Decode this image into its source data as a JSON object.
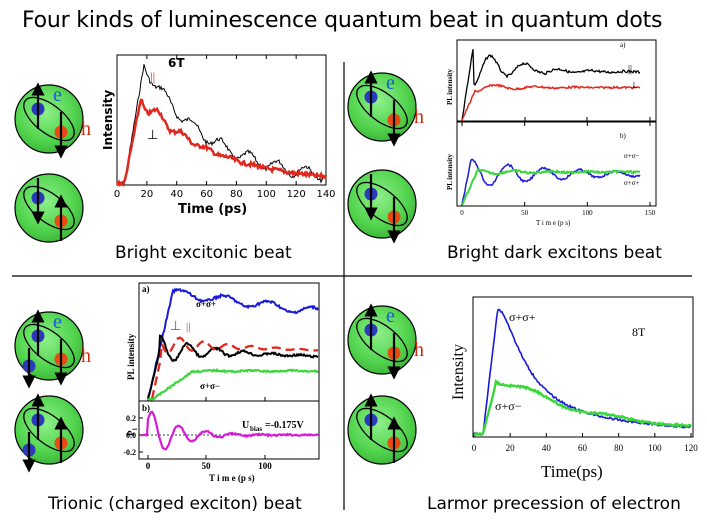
{
  "title": "Four kinds of luminescence quantum beat in quantum dots",
  "spin_symbols": {
    "e": "e",
    "h": "h"
  },
  "colors": {
    "black": "#000000",
    "red": "#e0281e",
    "blue": "#1a1adc",
    "green": "#3ad63a",
    "magenta": "#d61ad6",
    "dot_fill": "#52d44e"
  },
  "panels": {
    "tl": {
      "caption": "Bright excitonic beat",
      "field": "6T",
      "parallel": "||",
      "perp": "⊥",
      "ylabel": "Intensity",
      "xlabel": "Time (ps)",
      "xticks": [
        "0",
        "20",
        "40",
        "60",
        "80",
        "100",
        "120",
        "140"
      ]
    },
    "tr": {
      "caption": "Bright dark excitons beat",
      "label_a": "a)",
      "label_b": "b)",
      "ylabel": "PL intensity",
      "xlabel": "T i m e  (p s)",
      "xticks": [
        "0",
        "50",
        "100",
        "150"
      ],
      "parallel": "||",
      "perp": "⊥",
      "sig_pm": "σ+σ−",
      "sig_pp": "σ+σ+"
    },
    "bl": {
      "caption": "Trionic (charged exciton) beat",
      "label_a": "a)",
      "label_b": "b)",
      "ylabel_top": "PL intensity",
      "ylabel_bottom": "P",
      "ylabel_bottom_sub": "l",
      "xlabel": "T i m e (p s)",
      "sig_pp": "σ+σ+",
      "sig_pm": "σ+σ−",
      "perp": "⊥",
      "parallel": "||",
      "ubias_label": "U",
      "ubias_sub": "bias",
      "ubias_value": "=-0.175V",
      "yticks_bottom": [
        "0.2",
        "0.0",
        "-0.2"
      ],
      "xticks": [
        "0",
        "50",
        "100"
      ]
    },
    "br": {
      "caption": "Larmor precession of electron",
      "field": "8T",
      "ylabel": "Intensity",
      "xlabel": "Time(ps)",
      "sig_pp": "σ+σ+",
      "sig_pm": "σ+σ−",
      "xticks": [
        "0",
        "20",
        "40",
        "60",
        "80",
        "100",
        "120"
      ]
    }
  }
}
